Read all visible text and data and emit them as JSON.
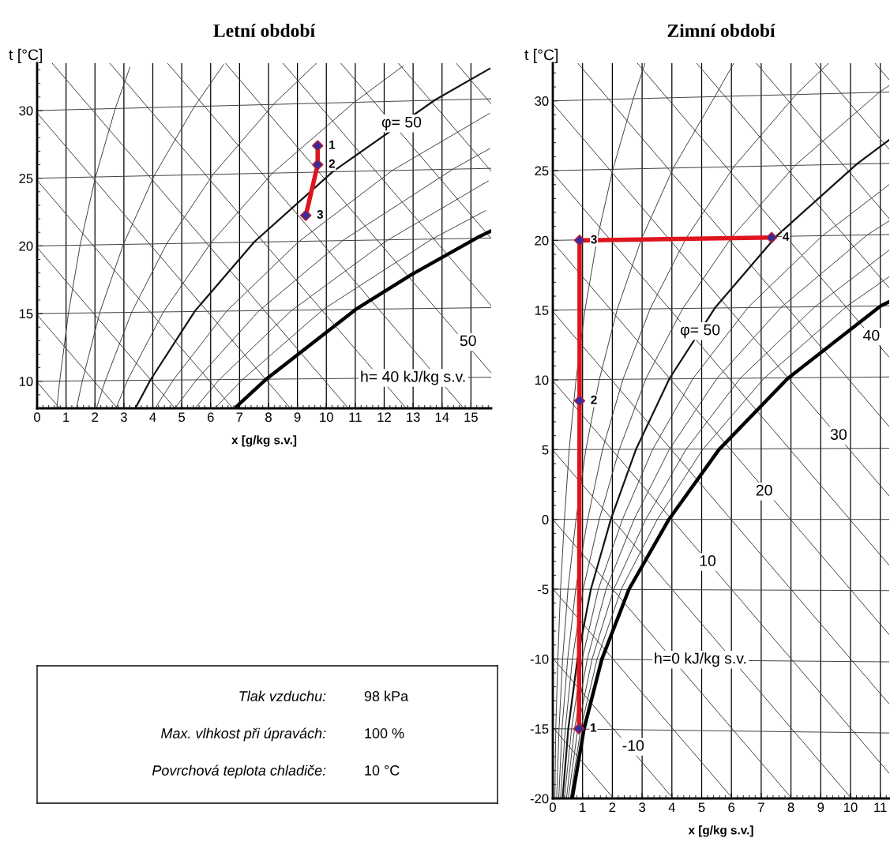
{
  "chart_data": [
    {
      "type": "line",
      "title": "Letní období",
      "xlabel": "x [g/kg s.v.]",
      "ylabel": "t [°C]",
      "xlim": [
        0,
        15.7
      ],
      "ylim": [
        8,
        33.5
      ],
      "xticks": [
        0,
        1,
        2,
        3,
        4,
        5,
        6,
        7,
        8,
        9,
        10,
        11,
        12,
        13,
        14,
        15
      ],
      "yticks": [
        10,
        15,
        20,
        25,
        30
      ],
      "grid": "x",
      "series": [
        {
          "color": "#3c3c3c",
          "x": [
            0,
            15.7
          ],
          "values": [
            10,
            10.3
          ]
        },
        {
          "color": "#3c3c3c",
          "x": [
            0,
            15.7
          ],
          "values": [
            15,
            15.44
          ]
        },
        {
          "color": "#3c3c3c",
          "x": [
            0,
            15.7
          ],
          "values": [
            20,
            20.58
          ]
        },
        {
          "color": "#3c3c3c",
          "x": [
            0,
            15.7
          ],
          "values": [
            25,
            25.73
          ]
        },
        {
          "color": "#3c3c3c",
          "x": [
            0,
            15.7
          ],
          "values": [
            30,
            30.87
          ]
        },
        {
          "color": "#3c3c3c",
          "x": [
            0,
            0.78
          ],
          "values": [
            9.94,
            8
          ]
        },
        {
          "color": "#3c3c3c",
          "x": [
            0,
            2.78
          ],
          "values": [
            14.91,
            8
          ]
        },
        {
          "color": "#3c3c3c",
          "x": [
            0,
            4.77
          ],
          "values": [
            19.88,
            8
          ]
        },
        {
          "color": "#3c3c3c",
          "x": [
            0,
            6.77
          ],
          "values": [
            24.85,
            8
          ]
        },
        {
          "color": "#3c3c3c",
          "x": [
            0,
            8.76
          ],
          "values": [
            29.82,
            8
          ]
        },
        {
          "color": "#3c3c3c",
          "x": [
            0.52,
            10.76
          ],
          "values": [
            33.5,
            8
          ]
        },
        {
          "color": "#3c3c3c",
          "x": [
            2.51,
            12.76
          ],
          "values": [
            33.5,
            8
          ]
        },
        {
          "color": "#3c3c3c",
          "x": [
            4.51,
            14.75
          ],
          "values": [
            33.5,
            8
          ]
        },
        {
          "color": "#3c3c3c",
          "x": [
            6.51,
            15.7
          ],
          "values": [
            33.5,
            10.61
          ]
        },
        {
          "color": "#3c3c3c",
          "x": [
            8.5,
            15.7
          ],
          "values": [
            33.5,
            15.58
          ]
        },
        {
          "color": "#3c3c3c",
          "x": [
            10.5,
            15.7
          ],
          "values": [
            33.5,
            20.55
          ]
        },
        {
          "color": "#3c3c3c",
          "x": [
            12.49,
            15.7
          ],
          "values": [
            33.5,
            25.52
          ]
        },
        {
          "color": "#3c3c3c",
          "x": [
            14.49,
            15.7
          ],
          "values": [
            33.5,
            30.49
          ]
        },
        {
          "color": "#3c3c3c",
          "x": [
            0.68,
            0.78,
            1.08,
            1.49,
            2.02,
            2.71,
            3.21
          ],
          "values": [
            8,
            10,
            15,
            20.1,
            25.1,
            30.2,
            33.2
          ]
        },
        {
          "color": "#3c3c3c",
          "x": [
            1.36,
            1.56,
            2.17,
            2.98,
            4.05,
            5.44,
            6.45
          ],
          "values": [
            8,
            10,
            15.1,
            20.1,
            25.2,
            30.3,
            33.4
          ]
        },
        {
          "color": "#3c3c3c",
          "x": [
            2.05,
            2.35,
            3.27,
            4.49,
            6.09,
            8.19,
            9.66
          ],
          "values": [
            8,
            10,
            15.1,
            20.2,
            25.3,
            30.5,
            33.5
          ]
        },
        {
          "color": "#3c3c3c",
          "x": [
            2.73,
            3.13,
            4.36,
            6.0,
            8.15,
            10.96,
            12.66
          ],
          "values": [
            8,
            10.1,
            15.1,
            20.2,
            25.4,
            30.6,
            33.3
          ]
        },
        {
          "color": "#141414",
          "x": [
            3.42,
            3.92,
            5.46,
            7.51,
            10.23,
            13.77,
            15.65
          ],
          "values": [
            8.1,
            10.1,
            15.2,
            20.3,
            25.5,
            30.8,
            33.1
          ]
        },
        {
          "color": "#3c3c3c",
          "x": [
            4.11,
            4.71,
            6.56,
            9.04,
            12.3,
            15.65
          ],
          "values": [
            8.1,
            10.1,
            15.2,
            20.3,
            25.6,
            29.8
          ]
        },
        {
          "color": "#3c3c3c",
          "x": [
            4.8,
            5.51,
            7.67,
            10.57,
            14.4,
            15.66
          ],
          "values": [
            8.1,
            10.1,
            15.2,
            20.4,
            25.7,
            27.2
          ]
        },
        {
          "color": "#3c3c3c",
          "x": [
            5.5,
            6.29,
            8.78,
            12.1,
            15.6
          ],
          "values": [
            8.1,
            10.1,
            15.2,
            20.4,
            24.8
          ]
        },
        {
          "color": "#3c3c3c",
          "x": [
            6.19,
            7.09,
            9.89,
            13.65,
            15.5
          ],
          "values": [
            8.1,
            10.1,
            15.3,
            20.5,
            22.6
          ]
        },
        {
          "color": "#000000",
          "x": [
            6.88,
            7.89,
            11.01,
            12.96,
            15.21,
            15.69
          ],
          "values": [
            8.1,
            10.1,
            15.3,
            17.9,
            20.6,
            21.1
          ]
        },
        {
          "color": "#e0141e",
          "x": [
            9.7,
            9.7,
            9.29
          ],
          "values": [
            27.4,
            26.0,
            22.25
          ]
        },
        {
          "type": "scatter",
          "marker": "diamond",
          "color": "#3a2a9e",
          "x": [
            9.7,
            9.7,
            9.29
          ],
          "values": [
            27.4,
            26.0,
            22.25
          ]
        }
      ],
      "annotations": [
        {
          "text": "1",
          "x": 9.7,
          "y": 27.4
        },
        {
          "text": "2",
          "x": 9.7,
          "y": 26.0
        },
        {
          "text": "3",
          "x": 9.29,
          "y": 22.25
        },
        {
          "text": "φ= 50",
          "x": 12.6,
          "y": 29.05
        },
        {
          "text": "50",
          "x": 14.9,
          "y": 12.9
        },
        {
          "text": "h= 40 kJ/kg s.v.",
          "x": 13.0,
          "y": 10.25
        }
      ]
    },
    {
      "type": "line",
      "title": "Zimní období",
      "xlabel": "x [g/kg s.v.]",
      "ylabel": "t [°C]",
      "xlim": [
        0,
        11.3
      ],
      "ylim": [
        -20,
        32.7
      ],
      "xticks": [
        0,
        1,
        2,
        3,
        4,
        5,
        6,
        7,
        8,
        9,
        10,
        11
      ],
      "yticks": [
        -20,
        -15,
        -10,
        -5,
        0,
        5,
        10,
        15,
        20,
        25,
        30
      ],
      "grid": "x",
      "series": [
        {
          "color": "#3c3c3c",
          "x": [
            0,
            11.3
          ],
          "values": [
            -15,
            -15.31
          ]
        },
        {
          "color": "#3c3c3c",
          "x": [
            0,
            11.3
          ],
          "values": [
            -10,
            -10.21
          ]
        },
        {
          "color": "#3c3c3c",
          "x": [
            0,
            11.3
          ],
          "values": [
            -5,
            -5.1
          ]
        },
        {
          "color": "#3c3c3c",
          "x": [
            0,
            11.3
          ],
          "values": [
            0,
            0
          ]
        },
        {
          "color": "#3c3c3c",
          "x": [
            0,
            11.3
          ],
          "values": [
            5,
            5.1
          ]
        },
        {
          "color": "#3c3c3c",
          "x": [
            0,
            11.3
          ],
          "values": [
            10,
            10.21
          ]
        },
        {
          "color": "#3c3c3c",
          "x": [
            0,
            11.3
          ],
          "values": [
            15,
            15.31
          ]
        },
        {
          "color": "#3c3c3c",
          "x": [
            0,
            11.3
          ],
          "values": [
            20,
            20.42
          ]
        },
        {
          "color": "#3c3c3c",
          "x": [
            0,
            11.3
          ],
          "values": [
            25,
            25.52
          ]
        },
        {
          "color": "#3c3c3c",
          "x": [
            0,
            11.3
          ],
          "values": [
            30,
            30.63
          ]
        },
        {
          "color": "#3c3c3c",
          "x": [
            0,
            2.04
          ],
          "values": [
            -14.91,
            -20
          ]
        },
        {
          "color": "#3c3c3c",
          "x": [
            0,
            4.04
          ],
          "values": [
            -9.94,
            -20
          ]
        },
        {
          "color": "#3c3c3c",
          "x": [
            0,
            6.04
          ],
          "values": [
            -4.97,
            -20
          ]
        },
        {
          "color": "#3c3c3c",
          "x": [
            0,
            8.03
          ],
          "values": [
            0,
            -20
          ]
        },
        {
          "color": "#3c3c3c",
          "x": [
            0,
            10.03
          ],
          "values": [
            4.97,
            -20
          ]
        },
        {
          "color": "#3c3c3c",
          "x": [
            0,
            11.3
          ],
          "values": [
            9.94,
            -18.2
          ]
        },
        {
          "color": "#3c3c3c",
          "x": [
            0,
            11.3
          ],
          "values": [
            14.91,
            -13.23
          ]
        },
        {
          "color": "#3c3c3c",
          "x": [
            0,
            11.3
          ],
          "values": [
            19.88,
            -8.26
          ]
        },
        {
          "color": "#3c3c3c",
          "x": [
            0,
            11.3
          ],
          "values": [
            24.85,
            -3.29
          ]
        },
        {
          "color": "#3c3c3c",
          "x": [
            0,
            11.3
          ],
          "values": [
            29.82,
            1.68
          ]
        },
        {
          "color": "#3c3c3c",
          "x": [
            0.84,
            11.3
          ],
          "values": [
            32.7,
            6.65
          ]
        },
        {
          "color": "#3c3c3c",
          "x": [
            2.84,
            11.3
          ],
          "values": [
            32.7,
            11.62
          ]
        },
        {
          "color": "#3c3c3c",
          "x": [
            4.83,
            11.3
          ],
          "values": [
            32.7,
            16.59
          ]
        },
        {
          "color": "#3c3c3c",
          "x": [
            6.83,
            11.3
          ],
          "values": [
            32.7,
            21.56
          ]
        },
        {
          "color": "#3c3c3c",
          "x": [
            8.82,
            11.3
          ],
          "values": [
            32.7,
            26.53
          ]
        },
        {
          "color": "#3c3c3c",
          "x": [
            10.82,
            11.3
          ],
          "values": [
            32.7,
            31.5
          ]
        },
        {
          "color": "#3c3c3c",
          "x": [
            0.07,
            0.1,
            0.17,
            0.26,
            0.39,
            0.55,
            0.78,
            1.08,
            1.49,
            2.02,
            2.71,
            3.1
          ],
          "values": [
            -20,
            -15,
            -10,
            -5,
            0,
            5,
            10,
            15,
            20.1,
            25.1,
            30.2,
            32.7
          ]
        },
        {
          "color": "#3c3c3c",
          "x": [
            0.13,
            0.21,
            0.33,
            0.51,
            0.78,
            1.11,
            1.56,
            2.17,
            2.98,
            4.05,
            5.44,
            6.08
          ],
          "values": [
            -20,
            -15,
            -10,
            -5,
            0,
            5,
            10,
            15.1,
            20.1,
            25.2,
            30.3,
            32.7
          ]
        },
        {
          "color": "#3c3c3c",
          "x": [
            0.2,
            0.31,
            0.5,
            0.77,
            1.17,
            1.67,
            2.35,
            3.27,
            4.49,
            6.09,
            8.19,
            9.26
          ],
          "values": [
            -20,
            -15,
            -10,
            -5,
            0,
            5,
            10,
            15.1,
            20.2,
            25.3,
            30.5,
            32.7
          ]
        },
        {
          "color": "#3c3c3c",
          "x": [
            0.26,
            0.42,
            0.66,
            1.02,
            1.56,
            2.23,
            3.13,
            4.36,
            6.0,
            8.15,
            10.96,
            11.3
          ],
          "values": [
            -20,
            -15,
            -10,
            -5,
            0,
            5,
            10.1,
            15.1,
            20.2,
            25.4,
            30.6,
            31.1
          ]
        },
        {
          "color": "#141414",
          "x": [
            0.33,
            0.52,
            0.83,
            1.28,
            1.95,
            2.79,
            3.92,
            5.46,
            7.51,
            10.23,
            11.3
          ],
          "values": [
            -20,
            -15,
            -10,
            -5,
            0,
            5,
            10.1,
            15.2,
            20.3,
            25.5,
            27.2
          ]
        },
        {
          "color": "#3c3c3c",
          "x": [
            0.39,
            0.63,
            0.99,
            1.53,
            2.34,
            3.35,
            4.71,
            6.56,
            9.04,
            11.3
          ],
          "values": [
            -20,
            -15,
            -10,
            -5,
            0,
            5,
            10.1,
            15.2,
            20.3,
            24.0
          ]
        },
        {
          "color": "#3c3c3c",
          "x": [
            0.46,
            0.73,
            1.16,
            1.79,
            2.73,
            3.91,
            5.51,
            7.67,
            10.57,
            11.3
          ],
          "values": [
            -20,
            -15,
            -10,
            -5,
            0,
            5,
            10.1,
            15.2,
            20.4,
            21.4
          ]
        },
        {
          "color": "#3c3c3c",
          "x": [
            0.52,
            0.84,
            1.32,
            2.05,
            3.12,
            4.47,
            6.29,
            8.78,
            11.3
          ],
          "values": [
            -20,
            -15,
            -10,
            -5,
            0,
            5,
            10.1,
            15.2,
            19.3
          ]
        },
        {
          "color": "#3c3c3c",
          "x": [
            0.59,
            0.94,
            1.49,
            2.3,
            3.51,
            5.03,
            7.09,
            9.89,
            11.3
          ],
          "values": [
            -20,
            -15,
            -10,
            -5,
            0,
            5,
            10.1,
            15.3,
            17.4
          ]
        },
        {
          "color": "#000000",
          "x": [
            0.65,
            1.05,
            1.65,
            2.56,
            3.9,
            5.58,
            7.89,
            11.01,
            11.3
          ],
          "values": [
            -20,
            -15,
            -10,
            -5,
            0,
            5,
            10.1,
            15.3,
            15.6
          ]
        },
        {
          "color": "#e0141e",
          "x": [
            0.88,
            0.9,
            0.9,
            7.35
          ],
          "values": [
            -15.0,
            8.5,
            20.0,
            20.2
          ]
        },
        {
          "type": "scatter",
          "marker": "diamond",
          "color": "#3a2a9e",
          "x": [
            0.88,
            0.9,
            0.9,
            7.35
          ],
          "values": [
            -15.0,
            8.5,
            20.0,
            20.2
          ]
        }
      ],
      "annotations": [
        {
          "text": "1",
          "x": 0.88,
          "y": -15.0
        },
        {
          "text": "2",
          "x": 0.9,
          "y": 8.5
        },
        {
          "text": "3",
          "x": 0.9,
          "y": 20.0
        },
        {
          "text": "4",
          "x": 7.35,
          "y": 20.2
        },
        {
          "text": "φ= 50",
          "x": 4.95,
          "y": 13.5
        },
        {
          "text": "40",
          "x": 10.7,
          "y": 13.1
        },
        {
          "text": "30",
          "x": 9.6,
          "y": 6.0
        },
        {
          "text": "20",
          "x": 7.1,
          "y": 2.0
        },
        {
          "text": "10",
          "x": 5.2,
          "y": -3.05
        },
        {
          "text": "h=0 kJ/kg s.v.",
          "x": 4.96,
          "y": -10.05
        },
        {
          "text": "-10",
          "x": 2.7,
          "y": -16.3
        }
      ]
    },
    {
      "type": "other",
      "annotations": [
        "Tlak vzduchu:",
        "98 kPa",
        "Max. vlhkost při úpravách:",
        "100 %",
        "Povrchová teplota chladiče:",
        "10 °C"
      ]
    }
  ]
}
